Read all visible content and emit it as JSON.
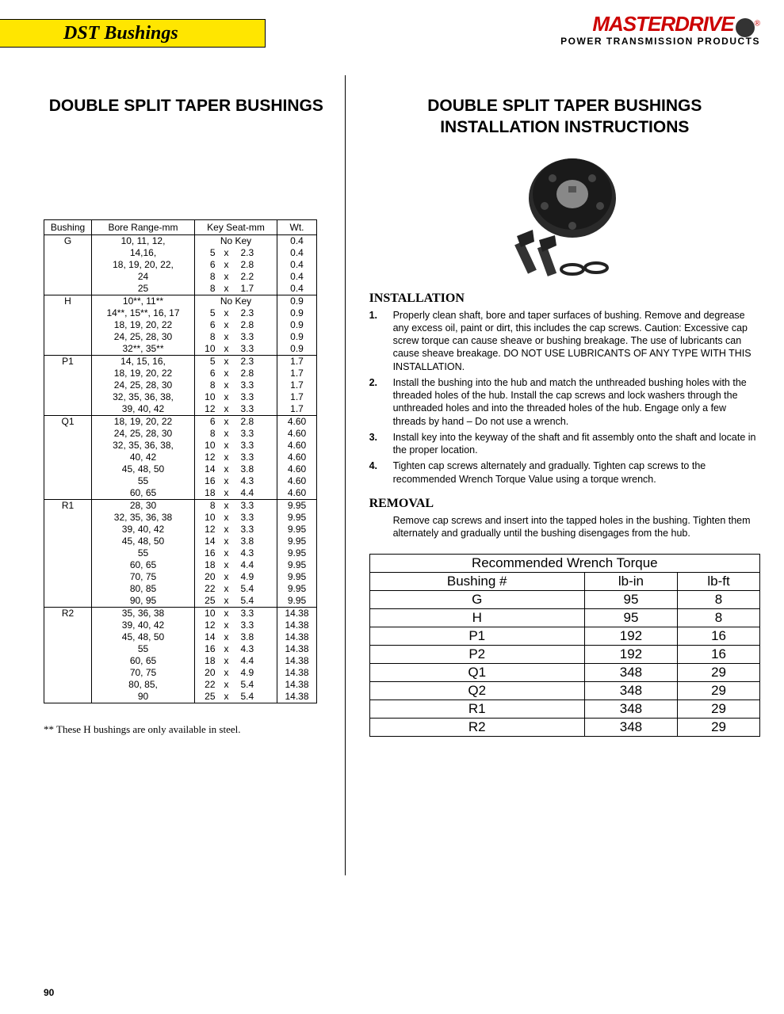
{
  "header": {
    "banner": "DST Bushings"
  },
  "logo": {
    "main": "MASTERDRIVE",
    "sub": "POWER TRANSMISSION PRODUCTS"
  },
  "left": {
    "title": "DOUBLE SPLIT TAPER BUSHINGS",
    "table": {
      "headers": [
        "Bushing",
        "Bore Range-mm",
        "Key Seat-mm",
        "Wt."
      ],
      "groups": [
        {
          "bushing": "G",
          "rows": [
            {
              "bore": "10, 11, 12,",
              "k1": "",
              "x": "No Key",
              "k2": "",
              "wt": "0.4"
            },
            {
              "bore": "14,16,",
              "k1": "5",
              "x": "x",
              "k2": "2.3",
              "wt": "0.4"
            },
            {
              "bore": "18, 19, 20, 22,",
              "k1": "6",
              "x": "x",
              "k2": "2.8",
              "wt": "0.4"
            },
            {
              "bore": "24",
              "k1": "8",
              "x": "x",
              "k2": "2.2",
              "wt": "0.4"
            },
            {
              "bore": "25",
              "k1": "8",
              "x": "x",
              "k2": "1.7",
              "wt": "0.4"
            }
          ]
        },
        {
          "bushing": "H",
          "rows": [
            {
              "bore": "10**, 11**",
              "k1": "",
              "x": "No Key",
              "k2": "",
              "wt": "0.9"
            },
            {
              "bore": "14**, 15**, 16, 17",
              "k1": "5",
              "x": "x",
              "k2": "2.3",
              "wt": "0.9"
            },
            {
              "bore": "18, 19, 20, 22",
              "k1": "6",
              "x": "x",
              "k2": "2.8",
              "wt": "0.9"
            },
            {
              "bore": "24, 25, 28, 30",
              "k1": "8",
              "x": "x",
              "k2": "3.3",
              "wt": "0.9"
            },
            {
              "bore": "32**, 35**",
              "k1": "10",
              "x": "x",
              "k2": "3.3",
              "wt": "0.9"
            }
          ]
        },
        {
          "bushing": "P1",
          "rows": [
            {
              "bore": "14, 15, 16,",
              "k1": "5",
              "x": "x",
              "k2": "2.3",
              "wt": "1.7"
            },
            {
              "bore": "18, 19, 20, 22",
              "k1": "6",
              "x": "x",
              "k2": "2.8",
              "wt": "1.7"
            },
            {
              "bore": "24, 25, 28, 30",
              "k1": "8",
              "x": "x",
              "k2": "3.3",
              "wt": "1.7"
            },
            {
              "bore": "32, 35, 36, 38,",
              "k1": "10",
              "x": "x",
              "k2": "3.3",
              "wt": "1.7"
            },
            {
              "bore": "39, 40, 42",
              "k1": "12",
              "x": "x",
              "k2": "3.3",
              "wt": "1.7"
            }
          ]
        },
        {
          "bushing": "Q1",
          "rows": [
            {
              "bore": "18, 19, 20, 22",
              "k1": "6",
              "x": "x",
              "k2": "2.8",
              "wt": "4.60"
            },
            {
              "bore": "24, 25, 28, 30",
              "k1": "8",
              "x": "x",
              "k2": "3.3",
              "wt": "4.60"
            },
            {
              "bore": "32, 35, 36, 38,",
              "k1": "10",
              "x": "x",
              "k2": "3.3",
              "wt": "4.60"
            },
            {
              "bore": "40, 42",
              "k1": "12",
              "x": "x",
              "k2": "3.3",
              "wt": "4.60"
            },
            {
              "bore": "45, 48, 50",
              "k1": "14",
              "x": "x",
              "k2": "3.8",
              "wt": "4.60"
            },
            {
              "bore": "55",
              "k1": "16",
              "x": "x",
              "k2": "4.3",
              "wt": "4.60"
            },
            {
              "bore": "60, 65",
              "k1": "18",
              "x": "x",
              "k2": "4.4",
              "wt": "4.60"
            }
          ]
        },
        {
          "bushing": "R1",
          "rows": [
            {
              "bore": "28, 30",
              "k1": "8",
              "x": "x",
              "k2": "3.3",
              "wt": "9.95"
            },
            {
              "bore": "32, 35, 36, 38",
              "k1": "10",
              "x": "x",
              "k2": "3.3",
              "wt": "9.95"
            },
            {
              "bore": "39, 40, 42",
              "k1": "12",
              "x": "x",
              "k2": "3.3",
              "wt": "9.95"
            },
            {
              "bore": "45, 48, 50",
              "k1": "14",
              "x": "x",
              "k2": "3.8",
              "wt": "9.95"
            },
            {
              "bore": "55",
              "k1": "16",
              "x": "x",
              "k2": "4.3",
              "wt": "9.95"
            },
            {
              "bore": "60, 65",
              "k1": "18",
              "x": "x",
              "k2": "4.4",
              "wt": "9.95"
            },
            {
              "bore": "70, 75",
              "k1": "20",
              "x": "x",
              "k2": "4.9",
              "wt": "9.95"
            },
            {
              "bore": "80, 85",
              "k1": "22",
              "x": "x",
              "k2": "5.4",
              "wt": "9.95"
            },
            {
              "bore": "90, 95",
              "k1": "25",
              "x": "x",
              "k2": "5.4",
              "wt": "9.95"
            }
          ]
        },
        {
          "bushing": "R2",
          "rows": [
            {
              "bore": "35, 36, 38",
              "k1": "10",
              "x": "x",
              "k2": "3.3",
              "wt": "14.38"
            },
            {
              "bore": "39, 40, 42",
              "k1": "12",
              "x": "x",
              "k2": "3.3",
              "wt": "14.38"
            },
            {
              "bore": "45, 48, 50",
              "k1": "14",
              "x": "x",
              "k2": "3.8",
              "wt": "14.38"
            },
            {
              "bore": "55",
              "k1": "16",
              "x": "x",
              "k2": "4.3",
              "wt": "14.38"
            },
            {
              "bore": "60, 65",
              "k1": "18",
              "x": "x",
              "k2": "4.4",
              "wt": "14.38"
            },
            {
              "bore": "70, 75",
              "k1": "20",
              "x": "x",
              "k2": "4.9",
              "wt": "14.38"
            },
            {
              "bore": "80, 85,",
              "k1": "22",
              "x": "x",
              "k2": "5.4",
              "wt": "14.38"
            },
            {
              "bore": "90",
              "k1": "25",
              "x": "x",
              "k2": "5.4",
              "wt": "14.38"
            }
          ]
        }
      ]
    },
    "footnote": "**   These H bushings are only available in steel."
  },
  "right": {
    "title1": "DOUBLE SPLIT TAPER BUSHINGS",
    "title2": "INSTALLATION INSTRUCTIONS",
    "install_hdr": "INSTALLATION",
    "install": [
      {
        "n": "1.",
        "t": "Properly clean shaft, bore and taper surfaces of bushing. Remove and degrease any excess oil, paint or dirt, this includes the cap screws.  Caution:  Excessive cap screw torque can cause sheave or bushing breakage.  The use of lubricants can cause sheave breakage.   DO NOT USE LUBRICANTS OF ANY TYPE WITH THIS INSTALLATION."
      },
      {
        "n": "2.",
        "t": "Install the bushing into the hub and match the unthreaded bushing holes with the threaded holes of the hub.  Install the cap screws and lock washers through the unthreaded holes and into the threaded holes of the hub.  Engage only a few threads by hand – Do not use a wrench."
      },
      {
        "n": "3.",
        "t": "Install key into the keyway of the shaft and fit assembly onto the shaft and locate in the proper location."
      },
      {
        "n": "4.",
        "t": "Tighten cap screws alternately and gradually.  Tighten cap screws to the recommended Wrench Torque Value using a torque wrench."
      }
    ],
    "removal_hdr": "REMOVAL",
    "removal_p": "Remove cap screws and insert into the tapped holes in the bushing. Tighten them alternately and gradually until the bushing disengages from the hub.",
    "torque": {
      "title": "Recommended Wrench Torque",
      "headers": [
        "Bushing #",
        "lb-in",
        "lb-ft"
      ],
      "rows": [
        [
          "G",
          "95",
          "8"
        ],
        [
          "H",
          "95",
          "8"
        ],
        [
          "P1",
          "192",
          "16"
        ],
        [
          "P2",
          "192",
          "16"
        ],
        [
          "Q1",
          "348",
          "29"
        ],
        [
          "Q2",
          "348",
          "29"
        ],
        [
          "R1",
          "348",
          "29"
        ],
        [
          "R2",
          "348",
          "29"
        ]
      ]
    }
  },
  "page_num": "90"
}
